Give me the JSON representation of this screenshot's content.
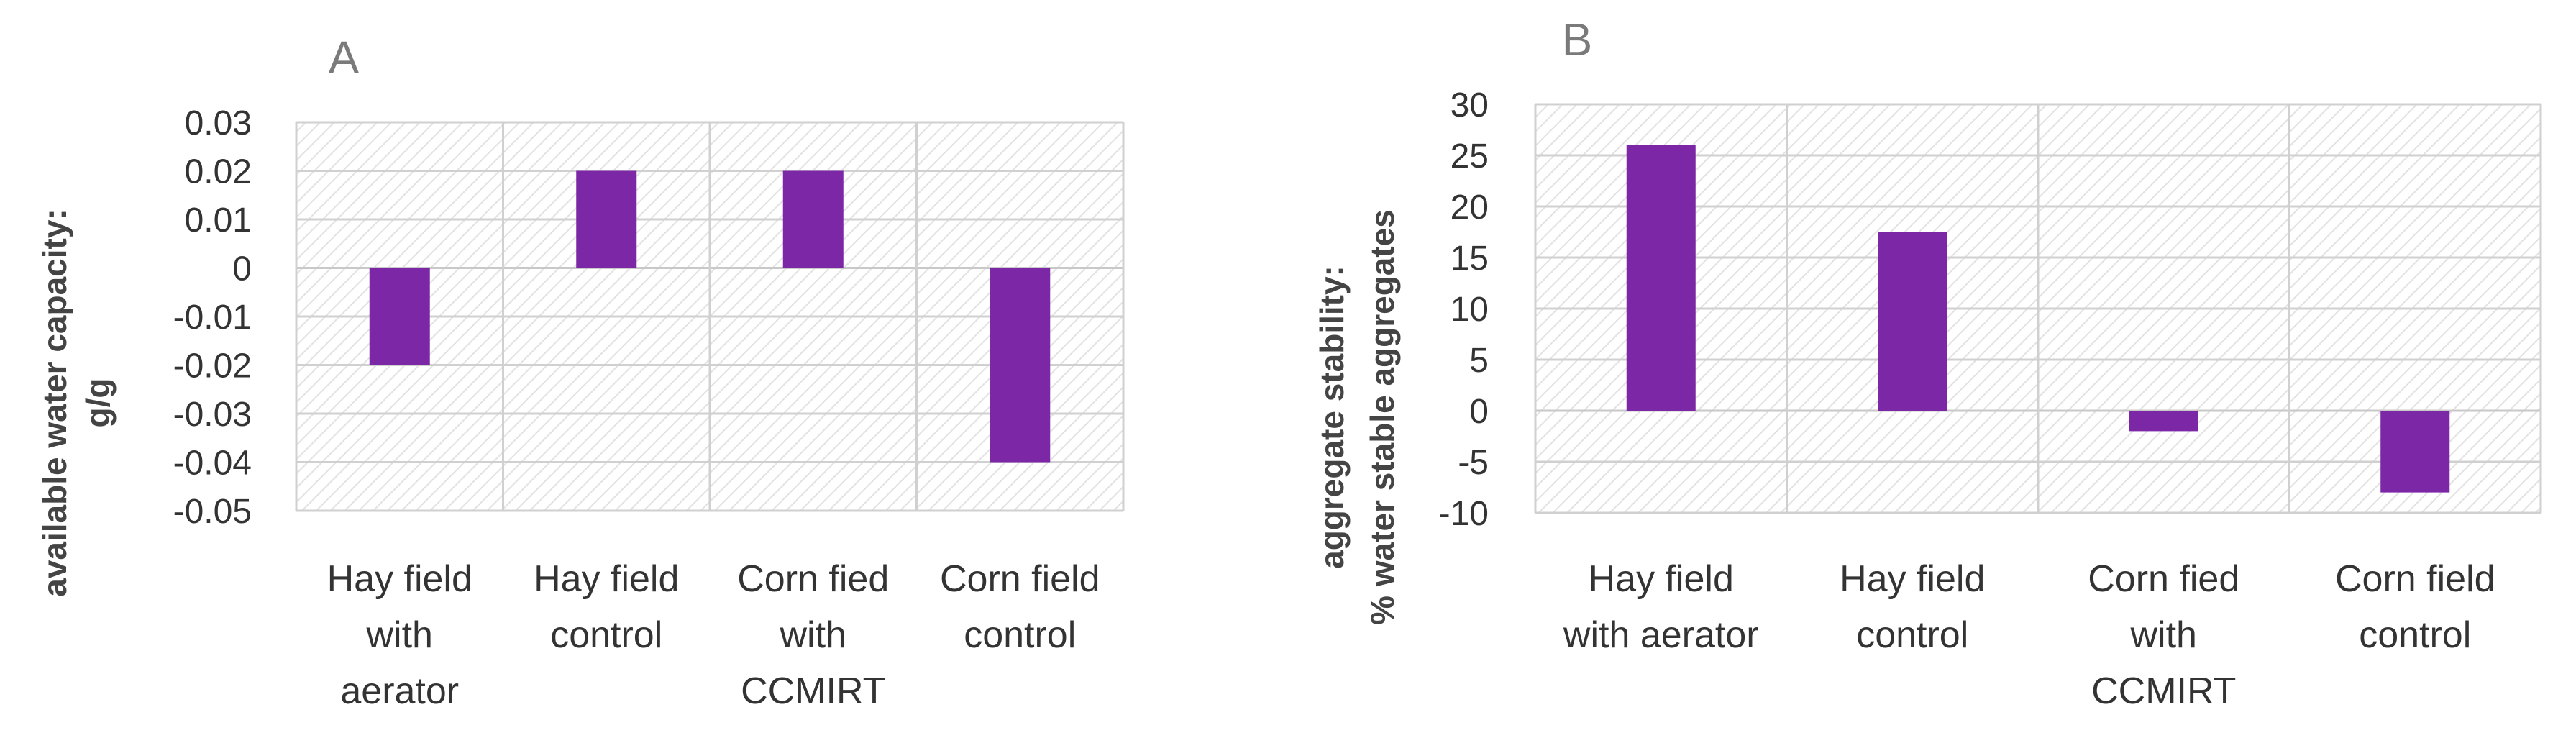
{
  "chart_data": [
    {
      "type": "bar",
      "panel_label": "A",
      "categories": [
        [
          "Hay field",
          "with",
          "aerator"
        ],
        [
          "Hay field",
          "control"
        ],
        [
          "Corn fied",
          "with",
          "CCMIRT"
        ],
        [
          "Corn field",
          "control"
        ]
      ],
      "values": [
        -0.02,
        0.02,
        0.02,
        -0.04
      ],
      "ylabel_lines": [
        "available water capacity:",
        "g/g"
      ],
      "ylim": [
        -0.05,
        0.03
      ],
      "yticks": [
        0.03,
        0.02,
        0.01,
        0,
        -0.01,
        -0.02,
        -0.03,
        -0.04,
        -0.05
      ],
      "ytick_labels": [
        "0.03",
        "0.02",
        "0.01",
        "0",
        "-0.01",
        "-0.02",
        "-0.03",
        "-0.04",
        "-0.05"
      ],
      "bar_color": "#7b27a6",
      "grid": true
    },
    {
      "type": "bar",
      "panel_label": "B",
      "categories": [
        [
          "Hay field",
          "with aerator"
        ],
        [
          "Hay field",
          "control"
        ],
        [
          "Corn fied",
          "with",
          "CCMIRT"
        ],
        [
          "Corn field",
          "control"
        ]
      ],
      "values": [
        26,
        17.5,
        -2,
        -8
      ],
      "ylabel_lines": [
        "aggregate stability:",
        "% water stable aggregates"
      ],
      "ylim": [
        -10,
        30
      ],
      "yticks": [
        30,
        25,
        20,
        15,
        10,
        5,
        0,
        -5,
        -10
      ],
      "ytick_labels": [
        "30",
        "25",
        "20",
        "15",
        "10",
        "5",
        "0",
        "-5",
        "-10"
      ],
      "bar_color": "#7b27a6",
      "grid": true
    }
  ]
}
